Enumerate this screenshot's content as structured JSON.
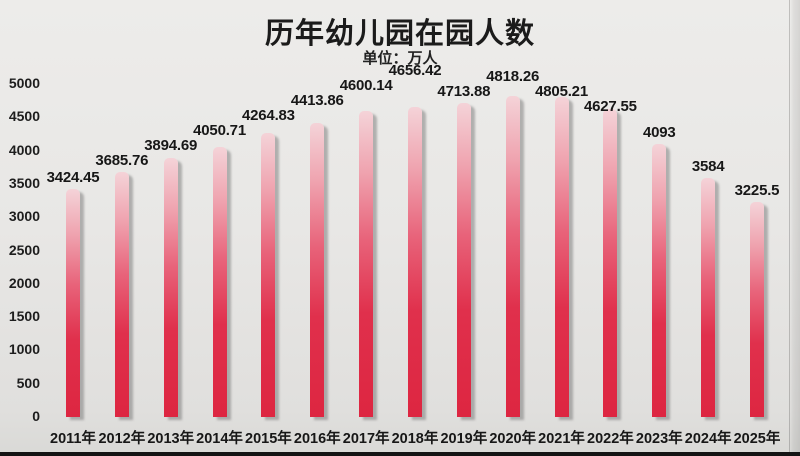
{
  "title": "历年幼儿园在园人数",
  "subtitle": "单位：万人",
  "chart_data": {
    "type": "bar",
    "title": "历年幼儿园在园人数",
    "subtitle": "单位：万人",
    "unit": "万人",
    "categories": [
      "2011年",
      "2012年",
      "2013年",
      "2014年",
      "2015年",
      "2016年",
      "2017年",
      "2018年",
      "2019年",
      "2020年",
      "2021年",
      "2022年",
      "2023年",
      "2024年",
      "2025年"
    ],
    "values": [
      3424.45,
      3685.76,
      3894.69,
      4050.71,
      4264.83,
      4413.86,
      4600.14,
      4656.42,
      4713.88,
      4818.26,
      4805.21,
      4627.55,
      4093,
      3584,
      3225.5
    ],
    "value_labels": [
      "3424.45",
      "3685.76",
      "3894.69",
      "4050.71",
      "4264.83",
      "4413.86",
      "4600.14",
      "4656.42",
      "4713.88",
      "4818.26",
      "4805.21",
      "4627.55",
      "4093",
      "3584",
      "3225.5"
    ],
    "xlabel": "",
    "ylabel": "",
    "ylim": [
      0,
      5000
    ],
    "y_ticks": [
      0,
      500,
      1000,
      1500,
      2000,
      2500,
      3000,
      3500,
      4000,
      4500,
      5000
    ],
    "grid": false,
    "legend": false,
    "colors": {
      "bar_top": "#f4d3d8",
      "bar_bottom": "#dd2641",
      "label_text": "#171717",
      "background": "#e8e7e5",
      "bottom_border": "#141414"
    }
  }
}
